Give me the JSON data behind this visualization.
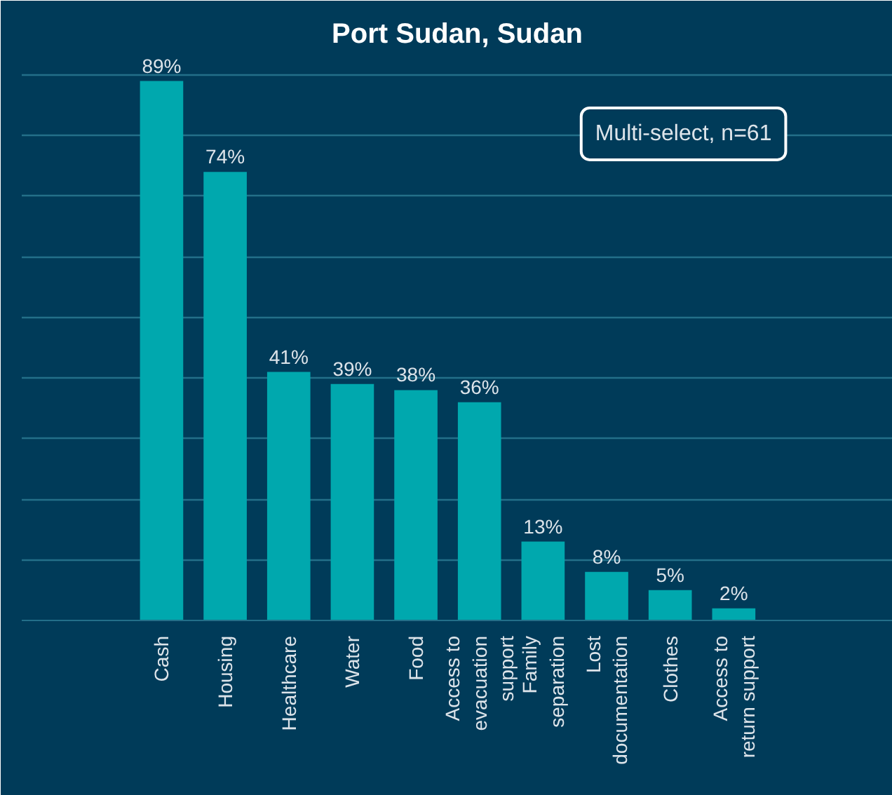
{
  "chart_data": {
    "type": "bar",
    "title": "Port Sudan, Sudan",
    "categories": [
      "Cash",
      "Housing",
      "Healthcare",
      "Water",
      "Food",
      "Access to evacuation support",
      "Family separation",
      "Lost documentation",
      "Clothes",
      "Access to return support"
    ],
    "values": [
      89,
      74,
      41,
      39,
      38,
      36,
      13,
      8,
      5,
      2
    ],
    "color": "#00a8ae",
    "value_labels": [
      "89%",
      "74%",
      "41%",
      "39%",
      "38%",
      "36%",
      "13%",
      "8%",
      "5%",
      "2%"
    ],
    "ylim": [
      0,
      93
    ],
    "yticks": [
      {
        "value": 0,
        "label": null
      },
      {
        "value": 10,
        "label": null
      },
      {
        "value": 20,
        "label": null
      },
      {
        "value": 30,
        "label": null
      },
      {
        "value": 40,
        "label": null
      },
      {
        "value": 50,
        "label": null
      },
      {
        "value": 60,
        "label": null
      },
      {
        "value": 70,
        "label": null
      },
      {
        "value": 80,
        "label": null
      },
      {
        "value": 90,
        "label": null
      }
    ],
    "grid": "y",
    "tick_labels": "x",
    "annotations": [
      "Multi-select, n=61"
    ]
  }
}
